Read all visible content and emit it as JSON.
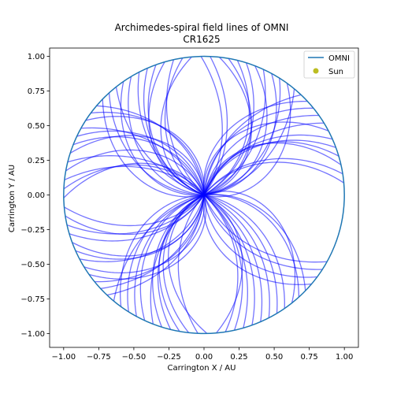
{
  "chart_data": {
    "type": "line",
    "title_line1": "Archimedes-spiral field lines of OMNI",
    "title_line2": "CR1625",
    "xlabel": "Carrington X / AU",
    "ylabel": "Carrington Y / AU",
    "xlim": [
      -1.1,
      1.1
    ],
    "ylim": [
      -1.1,
      1.06
    ],
    "xticks": [
      -1.0,
      -0.75,
      -0.5,
      -0.25,
      0.0,
      0.25,
      0.5,
      0.75,
      1.0
    ],
    "yticks": [
      -1.0,
      -0.75,
      -0.5,
      -0.25,
      0.0,
      0.25,
      0.5,
      0.75,
      1.0
    ],
    "xtick_labels": [
      "−1.00",
      "−0.75",
      "−0.50",
      "−0.25",
      "0.00",
      "0.25",
      "0.50",
      "0.75",
      "1.00"
    ],
    "ytick_labels": [
      "−1.00",
      "−0.75",
      "−0.50",
      "−0.25",
      "0.00",
      "0.25",
      "0.50",
      "0.75",
      "1.00"
    ],
    "grid": false,
    "legend_position": "top-right",
    "series": [
      {
        "name": "OMNI",
        "kind": "orbit-line",
        "radius_au": 1.0,
        "color": "#1f77b4"
      },
      {
        "name": "Sun",
        "kind": "point",
        "x": 0.0,
        "y": 0.0,
        "color": "#bcbd22"
      }
    ],
    "field_lines": {
      "color": "#0000ff",
      "count": 88,
      "start_angle_deg": 5.0,
      "angular_step_deg": 3.75,
      "max_radius_au": 1.0,
      "wind_speed_kms": [
        310,
        720
      ],
      "sign_by_sector": "alternating"
    }
  }
}
